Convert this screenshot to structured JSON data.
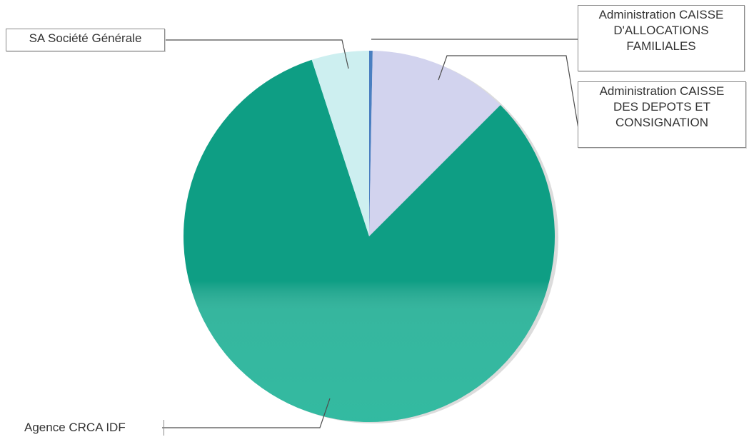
{
  "chart_data": {
    "type": "pie",
    "title": "",
    "slices": [
      {
        "label": "Administration CAISSE D'ALLOCATIONS FAMILIALES",
        "value": 0.3,
        "color": "#4a7fc1"
      },
      {
        "label": "Administration CAISSE DES DEPOTS ET CONSIGNATION",
        "value": 12.2,
        "color": "#d2d3ee"
      },
      {
        "label": "Agence CRCA IDF",
        "value": 82.5,
        "color": "#0e9e84"
      },
      {
        "label": "SA Société Générale",
        "value": 5.0,
        "color": "#cdeff0"
      }
    ],
    "start_angle_deg": 0,
    "direction": "clockwise",
    "legend": "callout labels"
  }
}
